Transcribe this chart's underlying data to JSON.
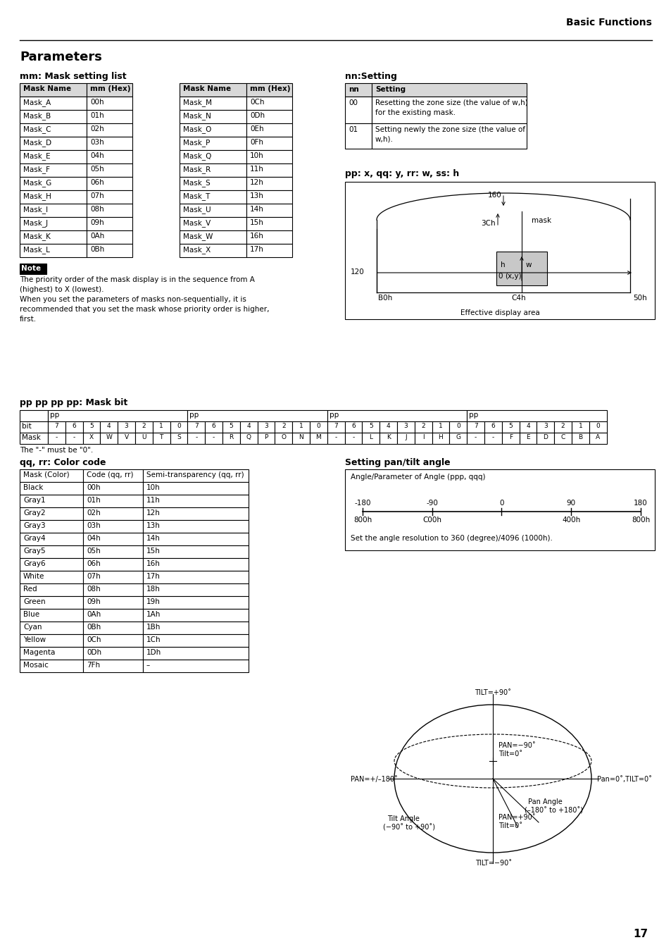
{
  "title_header": "Basic Functions",
  "page_title": "Parameters",
  "section1_title": "mm: Mask setting list",
  "section2_title": "nn:Setting",
  "section3_title": "pp: x, qq: y, rr: w, ss: h",
  "section4_title": "pp pp pp pp: Mask bit",
  "section5_title": "qq, rr: Color code",
  "section6_title": "Setting pan/tilt angle",
  "mask_table1": [
    [
      "Mask Name",
      "mm (Hex)"
    ],
    [
      "Mask_A",
      "00h"
    ],
    [
      "Mask_B",
      "01h"
    ],
    [
      "Mask_C",
      "02h"
    ],
    [
      "Mask_D",
      "03h"
    ],
    [
      "Mask_E",
      "04h"
    ],
    [
      "Mask_F",
      "05h"
    ],
    [
      "Mask_G",
      "06h"
    ],
    [
      "Mask_H",
      "07h"
    ],
    [
      "Mask_I",
      "08h"
    ],
    [
      "Mask_J",
      "09h"
    ],
    [
      "Mask_K",
      "0Ah"
    ],
    [
      "Mask_L",
      "0Bh"
    ]
  ],
  "mask_table2": [
    [
      "Mask Name",
      "mm (Hex)"
    ],
    [
      "Mask_M",
      "0Ch"
    ],
    [
      "Mask_N",
      "0Dh"
    ],
    [
      "Mask_O",
      "0Eh"
    ],
    [
      "Mask_P",
      "0Fh"
    ],
    [
      "Mask_Q",
      "10h"
    ],
    [
      "Mask_R",
      "11h"
    ],
    [
      "Mask_S",
      "12h"
    ],
    [
      "Mask_T",
      "13h"
    ],
    [
      "Mask_U",
      "14h"
    ],
    [
      "Mask_V",
      "15h"
    ],
    [
      "Mask_W",
      "16h"
    ],
    [
      "Mask_X",
      "17h"
    ]
  ],
  "nn_table": [
    [
      "nn",
      "Setting"
    ],
    [
      "00",
      "Resetting the zone size (the value of w,h)\nfor the existing mask."
    ],
    [
      "01",
      "Setting newly the zone size (the value of\nw,h)."
    ]
  ],
  "note_text_lines": [
    "The priority order of the mask display is in the sequence from A",
    "(highest) to X (lowest).",
    "When you set the parameters of masks non-sequentially, it is",
    "recommended that you set the mask whose priority order is higher,",
    "first."
  ],
  "color_table": [
    [
      "Mask (Color)",
      "Code (qq, rr)",
      "Semi-transparency (qq, rr)"
    ],
    [
      "Black",
      "00h",
      "10h"
    ],
    [
      "Gray1",
      "01h",
      "11h"
    ],
    [
      "Gray2",
      "02h",
      "12h"
    ],
    [
      "Gray3",
      "03h",
      "13h"
    ],
    [
      "Gray4",
      "04h",
      "14h"
    ],
    [
      "Gray5",
      "05h",
      "15h"
    ],
    [
      "Gray6",
      "06h",
      "16h"
    ],
    [
      "White",
      "07h",
      "17h"
    ],
    [
      "Red",
      "08h",
      "18h"
    ],
    [
      "Green",
      "09h",
      "19h"
    ],
    [
      "Blue",
      "0Ah",
      "1Ah"
    ],
    [
      "Cyan",
      "0Bh",
      "1Bh"
    ],
    [
      "Yellow",
      "0Ch",
      "1Ch"
    ],
    [
      "Magenta",
      "0Dh",
      "1Dh"
    ],
    [
      "Mosaic",
      "7Fh",
      "–"
    ]
  ],
  "bit_row": [
    "7",
    "6",
    "5",
    "4",
    "3",
    "2",
    "1",
    "0",
    "7",
    "6",
    "5",
    "4",
    "3",
    "2",
    "1",
    "0",
    "7",
    "6",
    "5",
    "4",
    "3",
    "2",
    "1",
    "0",
    "7",
    "6",
    "5",
    "4",
    "3",
    "2",
    "1",
    "0"
  ],
  "mask_row": [
    "-",
    "-",
    "X",
    "W",
    "V",
    "U",
    "T",
    "S",
    "-",
    "-",
    "R",
    "Q",
    "P",
    "O",
    "N",
    "M",
    "-",
    "-",
    "L",
    "K",
    "J",
    "I",
    "H",
    "G",
    "-",
    "-",
    "F",
    "E",
    "D",
    "C",
    "B",
    "A"
  ],
  "page_number": "17",
  "ticks_angles": [
    -180,
    -90,
    0,
    90,
    180
  ],
  "ticks_codes": [
    "800h",
    "C00h",
    "",
    "400h",
    "800h"
  ]
}
